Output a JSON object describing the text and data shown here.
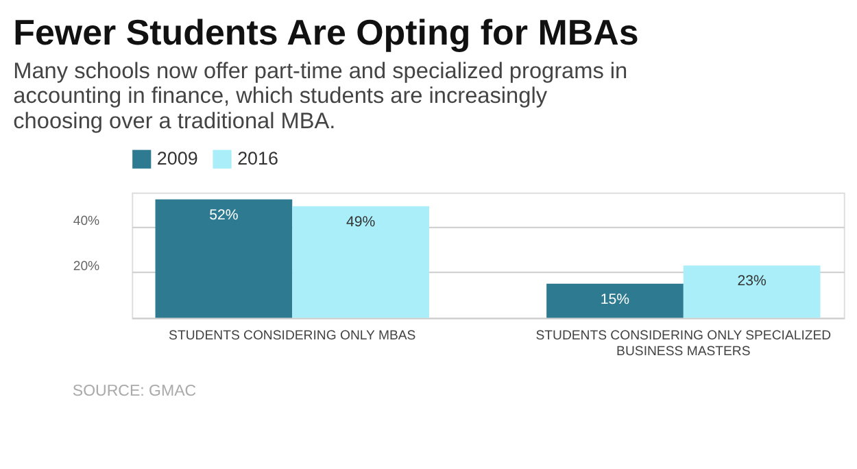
{
  "chart_data": {
    "type": "bar",
    "title": "Fewer Students Are Opting for MBAs",
    "subtitle": "Many schools now offer part-time and specialized programs in accounting in finance, which students are increasingly choosing over a traditional MBA.",
    "categories": [
      "STUDENTS CONSIDERING ONLY MBAS",
      "STUDENTS CONSIDERING ONLY SPECIALIZED BUSINESS MASTERS"
    ],
    "series": [
      {
        "name": "2009",
        "color": "#2e7b91",
        "values": [
          52,
          15
        ],
        "value_labels": [
          "52%",
          "15%"
        ]
      },
      {
        "name": "2016",
        "color": "#a9eef8",
        "values": [
          49,
          23
        ],
        "value_labels": [
          "49%",
          "23%"
        ]
      }
    ],
    "ylim": [
      0,
      55
    ],
    "yticks": [
      {
        "value": 0,
        "label": null
      },
      {
        "value": 20,
        "label": "20%"
      },
      {
        "value": 40,
        "label": "40%"
      }
    ],
    "grid": "y",
    "legend": "top left",
    "annotations": [
      "SOURCE: GMAC"
    ]
  }
}
